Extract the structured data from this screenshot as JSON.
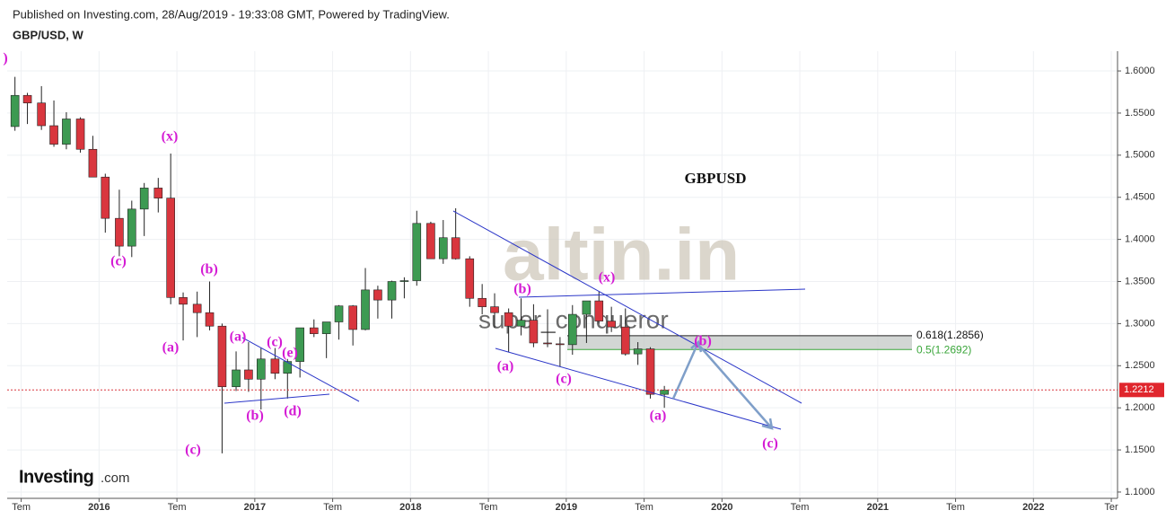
{
  "header": {
    "published": "Published on Investing.com, 28/Aug/2019 - 19:33:08 GMT, Powered by TradingView.",
    "symbol": "GBP/USD, W"
  },
  "chart_data": {
    "type": "candlestick",
    "title": "GBPUSD",
    "x": [
      2015.46,
      2015.54,
      2015.63,
      2015.71,
      2015.79,
      2015.88,
      2015.96,
      2016.04,
      2016.13,
      2016.21,
      2016.29,
      2016.38,
      2016.46,
      2016.54,
      2016.63,
      2016.71,
      2016.79,
      2016.88,
      2016.96,
      2017.04,
      2017.13,
      2017.21,
      2017.29,
      2017.38,
      2017.46,
      2017.54,
      2017.63,
      2017.71,
      2017.79,
      2017.88,
      2017.96,
      2018.04,
      2018.13,
      2018.21,
      2018.29,
      2018.38,
      2018.46,
      2018.54,
      2018.63,
      2018.71,
      2018.79,
      2018.88,
      2018.96,
      2019.04,
      2019.13,
      2019.21,
      2019.29,
      2019.38,
      2019.46,
      2019.54,
      2019.63
    ],
    "open": [
      1.534,
      1.571,
      1.562,
      1.535,
      1.513,
      1.543,
      1.507,
      1.474,
      1.425,
      1.392,
      1.436,
      1.461,
      1.449,
      1.331,
      1.323,
      1.313,
      1.297,
      1.225,
      1.245,
      1.234,
      1.258,
      1.241,
      1.255,
      1.295,
      1.288,
      1.302,
      1.321,
      1.293,
      1.34,
      1.328,
      1.35,
      1.351,
      1.419,
      1.377,
      1.402,
      1.377,
      1.33,
      1.32,
      1.313,
      1.297,
      1.304,
      1.277,
      1.276,
      1.275,
      1.311,
      1.327,
      1.303,
      1.296,
      1.264,
      1.27,
      1.216
    ],
    "high": [
      1.593,
      1.574,
      1.582,
      1.565,
      1.551,
      1.545,
      1.523,
      1.478,
      1.459,
      1.446,
      1.467,
      1.473,
      1.502,
      1.337,
      1.338,
      1.35,
      1.3,
      1.267,
      1.278,
      1.271,
      1.271,
      1.258,
      1.292,
      1.305,
      1.301,
      1.322,
      1.322,
      1.366,
      1.345,
      1.351,
      1.355,
      1.434,
      1.421,
      1.423,
      1.437,
      1.38,
      1.347,
      1.336,
      1.318,
      1.33,
      1.323,
      1.317,
      1.284,
      1.322,
      1.326,
      1.338,
      1.32,
      1.318,
      1.278,
      1.272,
      1.226
    ],
    "low": [
      1.529,
      1.537,
      1.53,
      1.51,
      1.507,
      1.503,
      1.474,
      1.408,
      1.38,
      1.379,
      1.404,
      1.432,
      1.323,
      1.28,
      1.284,
      1.292,
      1.146,
      1.22,
      1.219,
      1.198,
      1.234,
      1.211,
      1.236,
      1.284,
      1.259,
      1.281,
      1.274,
      1.292,
      1.306,
      1.306,
      1.33,
      1.345,
      1.377,
      1.371,
      1.376,
      1.32,
      1.311,
      1.295,
      1.266,
      1.286,
      1.272,
      1.272,
      1.249,
      1.263,
      1.277,
      1.3,
      1.29,
      1.262,
      1.251,
      1.211,
      1.2
    ],
    "close": [
      1.571,
      1.562,
      1.535,
      1.513,
      1.543,
      1.507,
      1.474,
      1.425,
      1.392,
      1.436,
      1.461,
      1.449,
      1.331,
      1.323,
      1.313,
      1.297,
      1.225,
      1.245,
      1.234,
      1.258,
      1.241,
      1.255,
      1.295,
      1.288,
      1.302,
      1.321,
      1.293,
      1.34,
      1.328,
      1.35,
      1.351,
      1.419,
      1.377,
      1.402,
      1.377,
      1.33,
      1.32,
      1.313,
      1.297,
      1.304,
      1.277,
      1.276,
      1.275,
      1.311,
      1.327,
      1.303,
      1.296,
      1.264,
      1.27,
      1.216,
      1.221
    ],
    "up_color": "#3d9a52",
    "down_color": "#d9363e",
    "xlim": [
      2015.41,
      2022.54
    ],
    "xticks": [
      {
        "value": 2015.5,
        "label": "Tem"
      },
      2016,
      {
        "value": 2016.5,
        "label": "Tem"
      },
      2017,
      {
        "value": 2017.5,
        "label": "Tem"
      },
      2018,
      {
        "value": 2018.5,
        "label": "Tem"
      },
      2019,
      {
        "value": 2019.5,
        "label": "Tem"
      },
      2020,
      {
        "value": 2020.5,
        "label": "Tem"
      },
      2021,
      {
        "value": 2021.5,
        "label": "Tem"
      },
      2022,
      {
        "value": 2022.5,
        "label": "Ter"
      }
    ],
    "ylim": [
      1.0925,
      1.6235
    ],
    "yticks": [
      {
        "value": 1.1,
        "label": "1.1000"
      },
      {
        "value": 1.15,
        "label": "1.1500"
      },
      {
        "value": 1.2,
        "label": "1.2000"
      },
      {
        "value": 1.25,
        "label": "1.2500"
      },
      {
        "value": 1.3,
        "label": "1.3000"
      },
      {
        "value": 1.35,
        "label": "1.3500"
      },
      {
        "value": 1.4,
        "label": "1.4000"
      },
      {
        "value": 1.45,
        "label": "1.4500"
      },
      {
        "value": 1.5,
        "label": "1.5000"
      },
      {
        "value": 1.55,
        "label": "1.5500"
      },
      {
        "value": 1.6,
        "label": "1.6000"
      }
    ],
    "grid": true,
    "last_price": {
      "value": 1.2212,
      "label": "1.2212"
    },
    "fib_levels": [
      {
        "value": 1.2856,
        "label": "0.618(1.2856)"
      },
      {
        "value": 1.2692,
        "label": "0.5(1.2692)"
      }
    ],
    "annotations": [
      ")",
      "(x)",
      "(c)",
      "(b)",
      "(a)",
      "(a)",
      "(c)",
      "(e)",
      "(b)",
      "(d)",
      "(c)",
      "(b)",
      "(x)",
      "(a)",
      "(c)",
      "(b)",
      "(a)",
      "(c)"
    ],
    "watermark": "altin.in",
    "watermark_sub": "super_conqueror"
  },
  "footer": {
    "logo": "Investing",
    "logo_suffix": ".com"
  }
}
